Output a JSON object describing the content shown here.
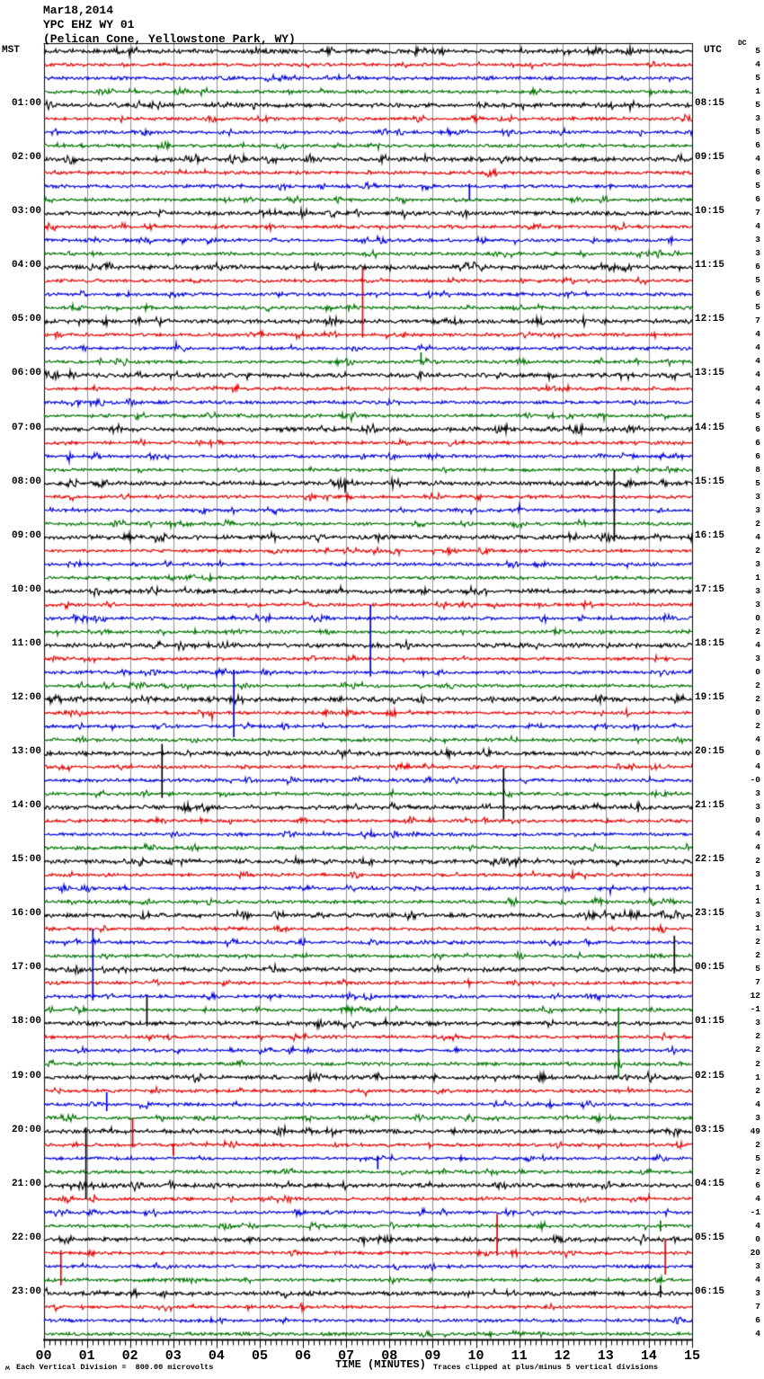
{
  "header": {
    "date": "Mar18,2014",
    "station": "YPC EHZ WY 01",
    "location": "(Pelican Cone, Yellowstone Park, WY)"
  },
  "left_axis": {
    "label": "MST"
  },
  "right_axis": {
    "label": "UTC",
    "dc_label": "DC"
  },
  "x_axis": {
    "title": "TIME (MINUTES)",
    "tick_labels": [
      "00",
      "01",
      "02",
      "03",
      "04",
      "05",
      "06",
      "07",
      "08",
      "09",
      "10",
      "11",
      "12",
      "13",
      "14",
      "15"
    ]
  },
  "footer": {
    "mark": "ʍ",
    "scale_note": "Each Vertical Division =  800.00 microvolts",
    "clip_note": "Traces clipped at plus/minus 5 vertical divisions"
  },
  "chart_data": {
    "type": "line",
    "subtype": "seismogram-helicorder",
    "title": "YPC EHZ WY 01 (Pelican Cone, Yellowstone Park, WY) Mar18,2014",
    "xlabel": "TIME (MINUTES)",
    "x_range_minutes": [
      0,
      15
    ],
    "rows": 96,
    "traces_per_hour": 4,
    "row_color_cycle": [
      "black",
      "red",
      "blue",
      "green"
    ],
    "colors": {
      "black": "#000000",
      "red": "#e60000",
      "blue": "#0000dd",
      "green": "#007400",
      "grid": "#8f8f8f"
    },
    "grid": {
      "vertical_every_minutes": 1,
      "minor_ticks_per_minute": 8
    },
    "microvolts_per_division": "800.00",
    "clip_divisions": 5,
    "hour_labels_mst": [
      "01:00",
      "02:00",
      "03:00",
      "04:00",
      "05:00",
      "06:00",
      "07:00",
      "08:00",
      "09:00",
      "10:00",
      "11:00",
      "12:00",
      "13:00",
      "14:00",
      "15:00",
      "16:00",
      "17:00",
      "18:00",
      "19:00",
      "20:00",
      "21:00",
      "22:00",
      "23:00"
    ],
    "hour_labels_utc": [
      "08:15",
      "09:15",
      "10:15",
      "11:15",
      "12:15",
      "13:15",
      "14:15",
      "15:15",
      "16:15",
      "17:15",
      "18:15",
      "19:15",
      "20:15",
      "21:15",
      "22:15",
      "23:15",
      "00:15",
      "01:15",
      "02:15",
      "03:15",
      "04:15",
      "05:15",
      "06:15"
    ],
    "dc_offsets": [
      "5",
      "4",
      "5",
      "1",
      "5",
      "3",
      "5",
      "6",
      "4",
      "6",
      "5",
      "6",
      "7",
      "4",
      "3",
      "3",
      "6",
      "5",
      "6",
      "5",
      "7",
      "4",
      "4",
      "4",
      "4",
      "4",
      "4",
      "5",
      "6",
      "6",
      "6",
      "8",
      "5",
      "3",
      "3",
      "2",
      "4",
      "2",
      "3",
      "1",
      "3",
      "3",
      "0",
      "2",
      "4",
      "3",
      "0",
      "2",
      "2",
      "0",
      "2",
      "4",
      "0",
      "4",
      "-0",
      "3",
      "3",
      "0",
      "4",
      "4",
      "2",
      "3",
      "1",
      "1",
      "3",
      "1",
      "2",
      "2",
      "5",
      "7",
      "12",
      "-1",
      "3",
      "2",
      "2",
      "2",
      "1",
      "2",
      "4",
      "3",
      "49",
      "2",
      "5",
      "2",
      "6",
      "4",
      "-1",
      "4",
      "0",
      "20",
      "3",
      "4",
      "3",
      "7",
      "6",
      "4"
    ],
    "events": [
      {
        "row": 11,
        "minute": 9.85,
        "up": 0.2,
        "down": 1.0
      },
      {
        "row": 22,
        "minute": 7.38,
        "up": 5.0,
        "down": 0.2
      },
      {
        "row": 24,
        "minute": 8.73,
        "up": 0.7,
        "down": 0.2
      },
      {
        "row": 37,
        "minute": 13.2,
        "up": 5.0,
        "down": 0.3
      },
      {
        "row": 47,
        "minute": 7.56,
        "up": 5.0,
        "down": 0.3
      },
      {
        "row": 51,
        "minute": 4.4,
        "up": 4.2,
        "down": 0.8
      },
      {
        "row": 53,
        "minute": 2.74,
        "up": 0.7,
        "down": 3.3
      },
      {
        "row": 57,
        "minute": 10.64,
        "up": 2.9,
        "down": 0.9
      },
      {
        "row": 69,
        "minute": 14.59,
        "up": 2.5,
        "down": 0.3
      },
      {
        "row": 71,
        "minute": 1.14,
        "up": 5.0,
        "down": 0.3
      },
      {
        "row": 72,
        "minute": 13.3,
        "up": 0.2,
        "down": 5.0
      },
      {
        "row": 73,
        "minute": 2.39,
        "up": 2.0,
        "down": 0.2
      },
      {
        "row": 79,
        "minute": 1.46,
        "up": 0.9,
        "down": 0.5
      },
      {
        "row": 81,
        "minute": 0.98,
        "up": 0.3,
        "down": 5.0
      },
      {
        "row": 82,
        "minute": 2.06,
        "up": 2.0,
        "down": 0.2
      },
      {
        "row": 82,
        "minute": 3.0,
        "up": 0.1,
        "down": 0.8
      },
      {
        "row": 83,
        "minute": 7.73,
        "up": 0.2,
        "down": 0.8
      },
      {
        "row": 88,
        "minute": 14.27,
        "up": 0.4,
        "down": 0.4
      },
      {
        "row": 90,
        "minute": 0.4,
        "up": 0.2,
        "down": 2.4
      },
      {
        "row": 90,
        "minute": 10.49,
        "up": 2.9,
        "down": 0.2
      },
      {
        "row": 90,
        "minute": 14.38,
        "up": 1.0,
        "down": 1.6
      },
      {
        "row": 93,
        "minute": 14.27,
        "up": 0.6,
        "down": 0.3
      }
    ]
  }
}
